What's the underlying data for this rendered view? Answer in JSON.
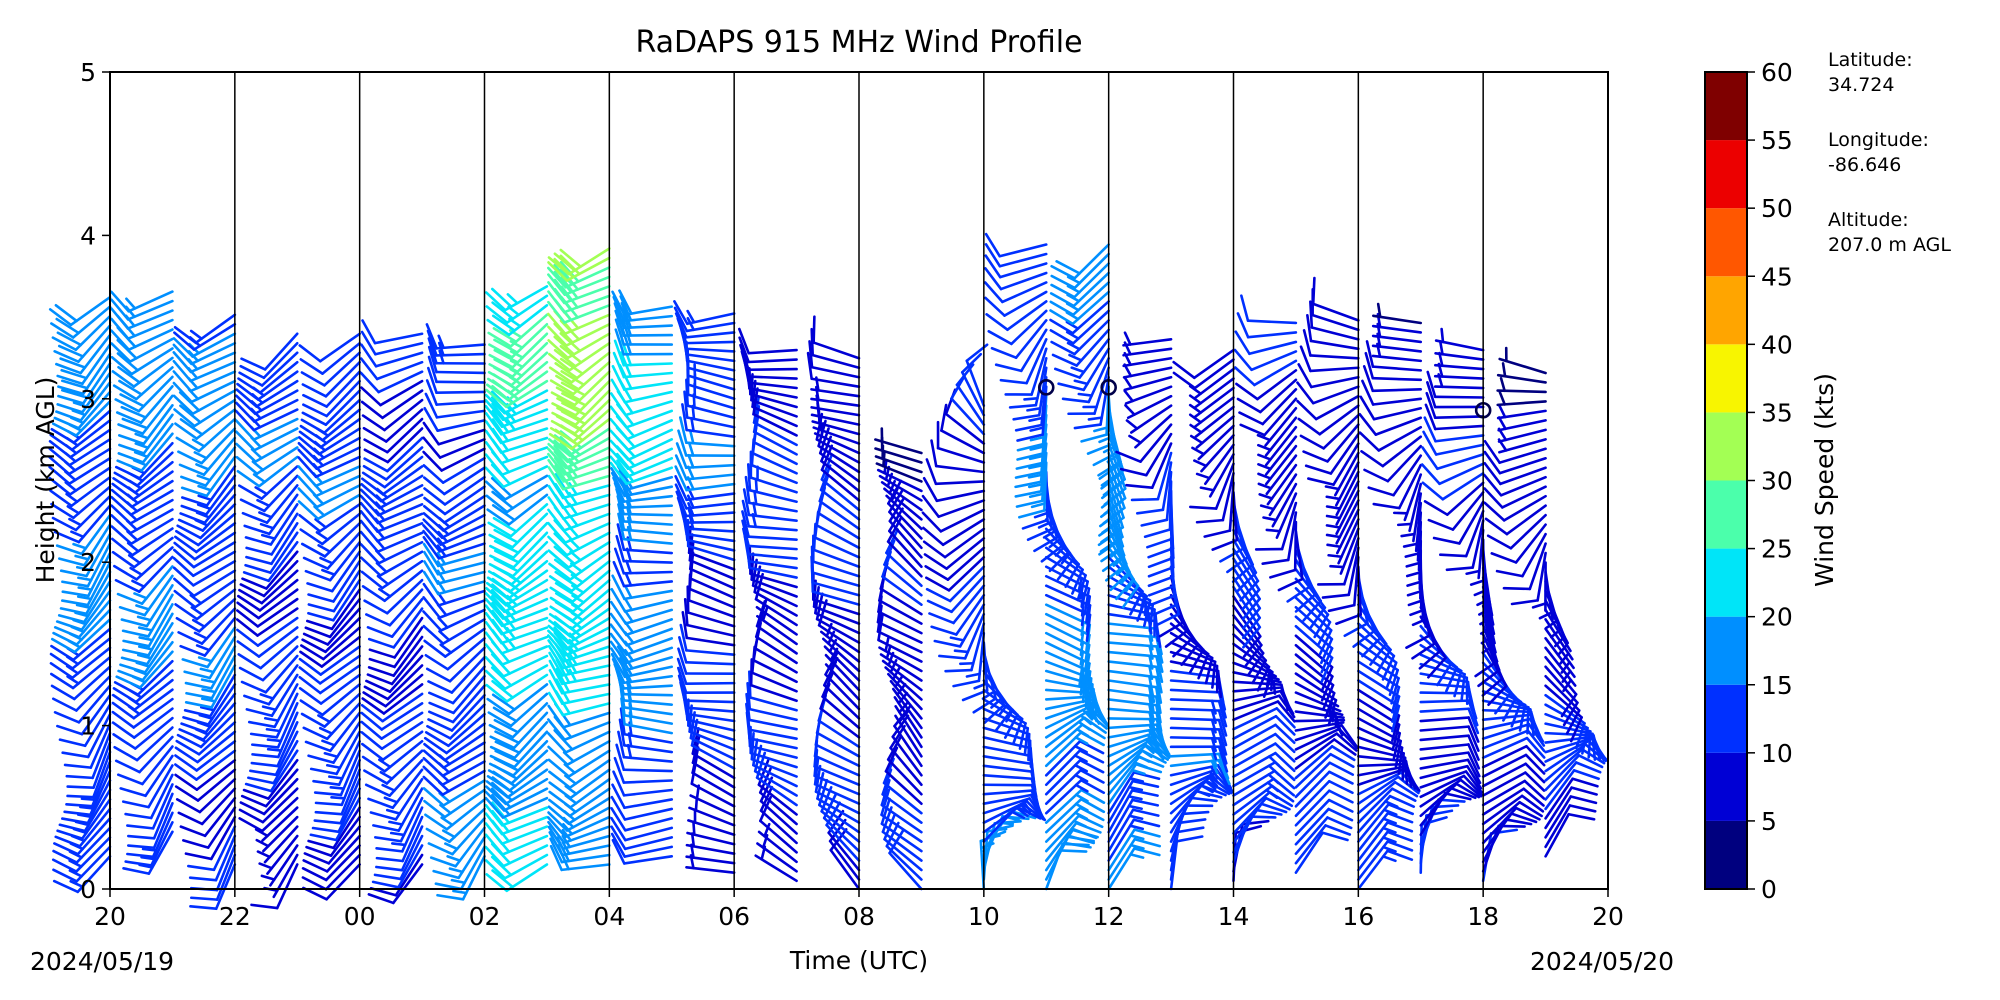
{
  "chart_data": {
    "type": "wind-barbs",
    "title": "RaDAPS 915 MHz Wind Profile",
    "xlabel": "Time (UTC)",
    "ylabel": "Height (km AGL)",
    "x_ticks": [
      "20",
      "22",
      "00",
      "02",
      "04",
      "06",
      "08",
      "10",
      "12",
      "14",
      "16",
      "18",
      "20"
    ],
    "x_tick_hours": [
      0,
      2,
      4,
      6,
      8,
      10,
      12,
      14,
      16,
      18,
      20,
      22,
      24
    ],
    "date_start": "2024/05/19",
    "date_end": "2024/05/20",
    "ylim": [
      0,
      5
    ],
    "y_ticks": [
      "0",
      "1",
      "2",
      "3",
      "4",
      "5"
    ],
    "grid": "vertical lines every 2 hours",
    "colorbar": {
      "label": "Wind Speed (kts)",
      "ticks": [
        "0",
        "5",
        "10",
        "15",
        "20",
        "25",
        "30",
        "35",
        "40",
        "45",
        "50",
        "55",
        "60"
      ],
      "colors": [
        "#00007f",
        "#0000d5",
        "#0030ff",
        "#008fff",
        "#00e5f8",
        "#4bffab",
        "#a3ff54",
        "#f8f500",
        "#ffa500",
        "#ff5700",
        "#ec0000",
        "#7f0000"
      ]
    },
    "site": {
      "latitude_label": "Latitude:",
      "latitude": "34.724",
      "longitude_label": "Longitude:",
      "longitude": "-86.646",
      "altitude_label": "Altitude:",
      "altitude": "207.0 m AGL"
    },
    "profiles": [
      {
        "time": 0.0,
        "bottom": 0.2,
        "top": 3.65,
        "dir_low": 210,
        "dir_high": 230,
        "spd_low": 12,
        "spd_high": 17
      },
      {
        "time": 1.0,
        "bottom": 0.35,
        "top": 3.7,
        "dir_low": 215,
        "dir_high": 235,
        "spd_low": 12,
        "spd_high": 17
      },
      {
        "time": 2.0,
        "bottom": 0.15,
        "top": 3.55,
        "dir_low": 215,
        "dir_high": 235,
        "spd_low": 11,
        "spd_high": 16
      },
      {
        "time": 3.0,
        "bottom": 0.15,
        "top": 3.45,
        "dir_low": 210,
        "dir_high": 235,
        "spd_low": 9,
        "spd_high": 14
      },
      {
        "time": 4.0,
        "bottom": 0.15,
        "top": 3.45,
        "dir_low": 210,
        "dir_high": 240,
        "spd_low": 10,
        "spd_high": 14
      },
      {
        "time": 5.0,
        "bottom": 0.15,
        "top": 3.4,
        "dir_low": 215,
        "dir_high": 245,
        "spd_low": 11,
        "spd_high": 12
      },
      {
        "time": 6.0,
        "bottom": 0.2,
        "top": 3.35,
        "dir_low": 220,
        "dir_high": 260,
        "spd_low": 14,
        "spd_high": 12
      },
      {
        "time": 7.0,
        "bottom": 0.15,
        "top": 3.7,
        "dir_low": 235,
        "dir_high": 240,
        "spd_low": 19,
        "spd_high": 24
      },
      {
        "time": 8.0,
        "bottom": 0.15,
        "top": 3.95,
        "dir_low": 250,
        "dir_high": 235,
        "spd_low": 16,
        "spd_high": 33
      },
      {
        "time": 9.0,
        "bottom": 0.2,
        "top": 3.6,
        "dir_low": 270,
        "dir_high": 255,
        "spd_low": 12,
        "spd_high": 22
      },
      {
        "time": 10.0,
        "bottom": 0.1,
        "top": 3.55,
        "dir_low": 290,
        "dir_high": 270,
        "spd_low": 8,
        "spd_high": 15
      },
      {
        "time": 11.0,
        "bottom": 0.05,
        "top": 3.35,
        "dir_low": 300,
        "dir_high": 280,
        "spd_low": 9,
        "spd_high": 11
      },
      {
        "time": 12.0,
        "bottom": 0.0,
        "top": 3.3,
        "dir_low": 310,
        "dir_high": 290,
        "spd_low": 10,
        "spd_high": 9
      },
      {
        "time": 13.0,
        "bottom": 0.0,
        "top": 2.7,
        "dir_low": 320,
        "dir_high": 300,
        "spd_low": 9,
        "spd_high": 7
      },
      {
        "time": 14.0,
        "bottom": 0.0,
        "top": 3.0,
        "dir_low": 10,
        "dir_high": 330,
        "spd_low": 14,
        "spd_high": 9
      },
      {
        "time": 15.0,
        "bottom": 0.0,
        "top": 4.0,
        "dir_low": 15,
        "dir_high": 250,
        "spd_low": 18,
        "spd_high": 12
      },
      {
        "time": 16.0,
        "bottom": 0.0,
        "top": 4.0,
        "dir_low": 20,
        "dir_high": 240,
        "spd_low": 17,
        "spd_high": 16
      },
      {
        "time": 17.0,
        "bottom": 0.0,
        "top": 3.4,
        "dir_low": 15,
        "dir_high": 260,
        "spd_low": 14,
        "spd_high": 8
      },
      {
        "time": 18.0,
        "bottom": 0.05,
        "top": 3.35,
        "dir_low": 10,
        "dir_high": 250,
        "spd_low": 11,
        "spd_high": 8
      },
      {
        "time": 19.0,
        "bottom": 0.1,
        "top": 3.5,
        "dir_low": 20,
        "dir_high": 270,
        "spd_low": 10,
        "spd_high": 8
      },
      {
        "time": 20.0,
        "bottom": 0.0,
        "top": 3.5,
        "dir_low": 30,
        "dir_high": 280,
        "spd_low": 12,
        "spd_high": 7
      },
      {
        "time": 21.0,
        "bottom": 0.1,
        "top": 3.5,
        "dir_low": 15,
        "dir_high": 290,
        "spd_low": 11,
        "spd_high": 6
      },
      {
        "time": 22.0,
        "bottom": 0.05,
        "top": 3.35,
        "dir_low": 10,
        "dir_high": 300,
        "spd_low": 11,
        "spd_high": 7
      },
      {
        "time": 23.0,
        "bottom": 0.2,
        "top": 3.2,
        "dir_low": 20,
        "dir_high": 300,
        "spd_low": 11,
        "spd_high": 6
      }
    ],
    "calm_markers": [
      {
        "time": 15.0,
        "height": 3.07
      },
      {
        "time": 16.0,
        "height": 3.07
      },
      {
        "time": 22.0,
        "height": 2.93
      }
    ]
  }
}
